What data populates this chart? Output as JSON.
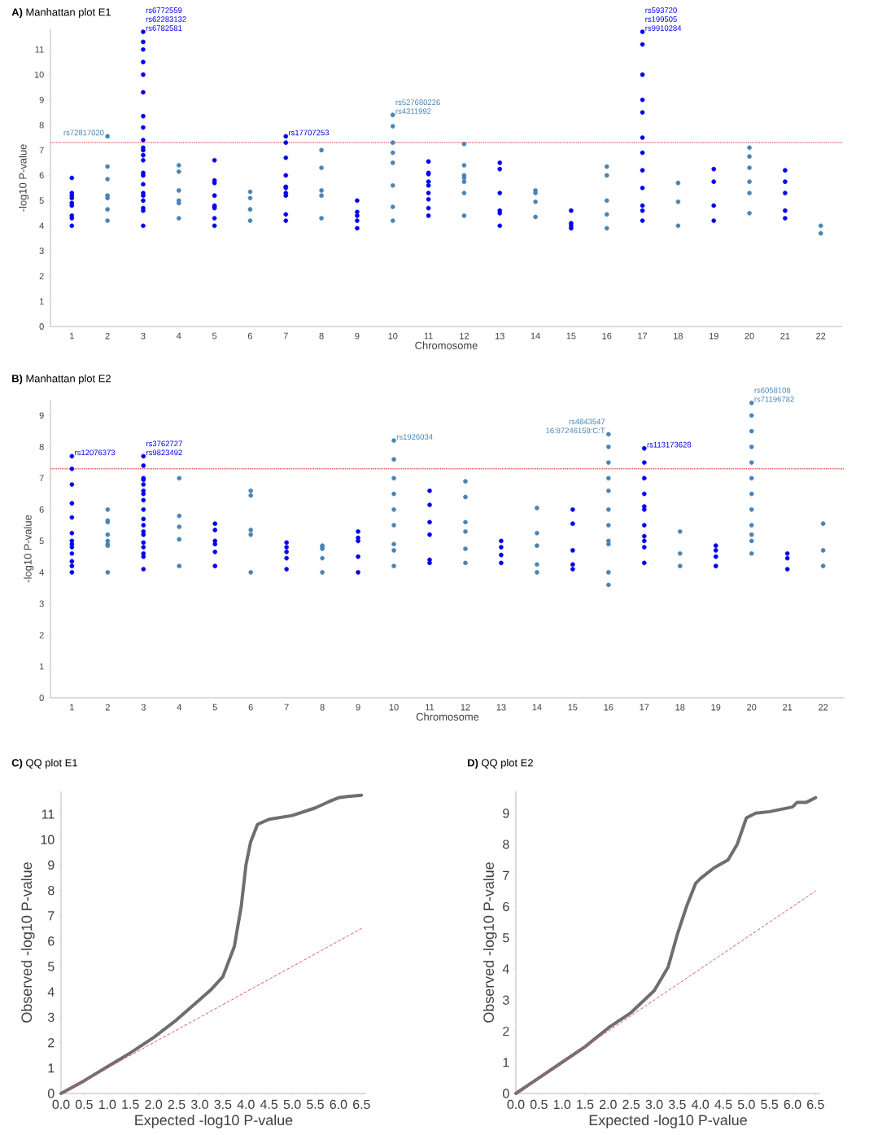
{
  "chart_data": [
    {
      "type": "scatter",
      "title": "**A)** Manhattan plot E1",
      "xlabel": "Chromosome",
      "ylabel": "-log10 P-value",
      "marker": "circle",
      "categories": [
        "1",
        "2",
        "3",
        "4",
        "5",
        "6",
        "7",
        "8",
        "9",
        "10",
        "11",
        "12",
        "13",
        "14",
        "15",
        "16",
        "17",
        "18",
        "19",
        "20",
        "21",
        "22"
      ],
      "ylim": [
        0,
        11.8
      ],
      "yticks": [
        0,
        1,
        2,
        3,
        4,
        5,
        6,
        7,
        8,
        9,
        10,
        11
      ],
      "ref_lines": [
        {
          "axis": "y",
          "value": 7.3,
          "color": "#e05a5a",
          "line_style": "dotted"
        }
      ],
      "series": [
        {
          "color": "#0000ee",
          "x": [
            "1",
            "1",
            "1",
            "1",
            "1",
            "1",
            "1",
            "1",
            "1",
            "3",
            "3",
            "3",
            "3",
            "3",
            "3",
            "3",
            "3",
            "3",
            "3",
            "3",
            "3",
            "3",
            "3",
            "3",
            "3",
            "3",
            "3",
            "3",
            "3",
            "3",
            "3",
            "5",
            "5",
            "5",
            "5",
            "5",
            "5",
            "5",
            "5",
            "5",
            "7",
            "7",
            "7",
            "7",
            "7",
            "7",
            "7",
            "7",
            "7",
            "7",
            "9",
            "9",
            "9",
            "9",
            "9",
            "11",
            "11",
            "11",
            "11",
            "11",
            "11",
            "11",
            "11",
            "11",
            "13",
            "13",
            "13",
            "13",
            "13",
            "13",
            "15",
            "15",
            "15",
            "15",
            "17",
            "17",
            "17",
            "17",
            "17",
            "17",
            "17",
            "17",
            "17",
            "17",
            "17",
            "17",
            "19",
            "19",
            "19",
            "19",
            "21",
            "21",
            "21",
            "21",
            "21"
          ],
          "values": [
            4.0,
            4.3,
            4.4,
            4.8,
            4.9,
            5.1,
            5.2,
            5.3,
            5.9,
            4.0,
            4.6,
            4.7,
            5.0,
            5.2,
            5.3,
            5.65,
            6.0,
            6.1,
            6.6,
            6.8,
            7.0,
            7.1,
            7.4,
            7.9,
            8.35,
            9.3,
            10.0,
            10.5,
            11.0,
            11.3,
            11.7,
            4.0,
            4.3,
            4.7,
            4.75,
            4.8,
            5.2,
            5.7,
            5.8,
            6.6,
            4.2,
            4.45,
            5.2,
            5.3,
            5.5,
            5.55,
            6.0,
            6.7,
            7.3,
            7.55,
            3.9,
            4.2,
            4.4,
            4.55,
            5.0,
            4.4,
            4.7,
            5.05,
            5.3,
            5.6,
            5.75,
            6.05,
            6.1,
            6.55,
            4.0,
            4.5,
            4.6,
            5.3,
            6.25,
            6.5,
            3.9,
            4.0,
            4.1,
            4.6,
            4.2,
            4.6,
            4.8,
            5.5,
            6.2,
            6.9,
            7.5,
            8.5,
            9.0,
            10.0,
            11.2,
            11.7,
            4.2,
            4.8,
            5.75,
            6.25,
            4.3,
            4.6,
            5.3,
            5.75,
            6.2
          ]
        },
        {
          "color": "#4a84b6",
          "x": [
            "2",
            "2",
            "2",
            "2",
            "2",
            "2",
            "2",
            "2",
            "4",
            "4",
            "4",
            "4",
            "4",
            "4",
            "6",
            "6",
            "6",
            "6",
            "6",
            "8",
            "8",
            "8",
            "8",
            "8",
            "10",
            "10",
            "10",
            "10",
            "10",
            "10",
            "10",
            "10",
            "12",
            "12",
            "12",
            "12",
            "12",
            "12",
            "12",
            "14",
            "14",
            "14",
            "14",
            "14",
            "16",
            "16",
            "16",
            "16",
            "16",
            "18",
            "18",
            "18",
            "20",
            "20",
            "20",
            "20",
            "20",
            "20",
            "22",
            "22"
          ],
          "values": [
            4.2,
            4.65,
            null,
            5.1,
            5.2,
            5.85,
            6.35,
            7.55,
            4.3,
            4.9,
            5.0,
            5.4,
            6.15,
            6.4,
            4.2,
            4.65,
            5.1,
            null,
            5.35,
            4.3,
            5.2,
            5.4,
            6.3,
            7.0,
            4.2,
            4.75,
            5.6,
            6.5,
            6.9,
            7.3,
            7.95,
            8.4,
            4.4,
            5.3,
            5.75,
            5.9,
            6.0,
            6.4,
            7.25,
            null,
            4.35,
            4.95,
            5.3,
            5.4,
            3.9,
            4.45,
            5.0,
            6.0,
            6.35,
            4.0,
            4.95,
            5.7,
            4.5,
            5.3,
            5.75,
            6.3,
            6.75,
            7.1,
            3.7,
            4.0
          ]
        }
      ],
      "annotations": [
        {
          "text": "rs72817020",
          "x": "2",
          "y": 7.55
        },
        {
          "text": "rs6772559",
          "x": "3",
          "y": 11.7
        },
        {
          "text": "rs62283132",
          "x": "3",
          "y": 11.7
        },
        {
          "text": "rs6782581",
          "x": "3",
          "y": 11.7
        },
        {
          "text": "rs17707253",
          "x": "7",
          "y": 7.55
        },
        {
          "text": "rs527680226",
          "x": "10",
          "y": 8.4
        },
        {
          "text": "rs4311992",
          "x": "10",
          "y": 8.4
        },
        {
          "text": "rs593720",
          "x": "17",
          "y": 11.7
        },
        {
          "text": "rs199505",
          "x": "17",
          "y": 11.7
        },
        {
          "text": "rs9910284",
          "x": "17",
          "y": 11.7
        }
      ]
    },
    {
      "type": "scatter",
      "title": "**B)** Manhattan plot E2",
      "xlabel": "Chromosome",
      "ylabel": "-log10 P-value",
      "marker": "circle",
      "categories": [
        "1",
        "2",
        "3",
        "4",
        "5",
        "6",
        "7",
        "8",
        "9",
        "10",
        "11",
        "12",
        "13",
        "14",
        "15",
        "16",
        "17",
        "18",
        "19",
        "20",
        "21",
        "22"
      ],
      "ylim": [
        0,
        9.5
      ],
      "yticks": [
        0,
        1,
        2,
        3,
        4,
        5,
        6,
        7,
        8,
        9
      ],
      "ref_lines": [
        {
          "axis": "y",
          "value": 7.3,
          "color": "#e05a5a",
          "line_style": "dotted"
        }
      ],
      "series": [
        {
          "color": "#0000ee",
          "x": [
            "1",
            "1",
            "1",
            "1",
            "1",
            "1",
            "1",
            "1",
            "1",
            "1",
            "1",
            "1",
            "1",
            "3",
            "3",
            "3",
            "3",
            "3",
            "3",
            "3",
            "3",
            "3",
            "3",
            "3",
            "3",
            "3",
            "3",
            "3",
            "3",
            "3",
            "3",
            "5",
            "5",
            "5",
            "5",
            "5",
            "5",
            "7",
            "7",
            "7",
            "7",
            "7",
            "9",
            "9",
            "9",
            "9",
            "9",
            "11",
            "11",
            "11",
            "11",
            "11",
            "11",
            "13",
            "13",
            "13",
            "13",
            "15",
            "15",
            "15",
            "15",
            "15",
            "17",
            "17",
            "17",
            "17",
            "17",
            "17",
            "17",
            "17",
            "17",
            "17",
            "17",
            "19",
            "19",
            "19",
            "19",
            "21",
            "21",
            "21"
          ],
          "values": [
            4.0,
            4.2,
            4.35,
            4.6,
            4.8,
            4.9,
            5.0,
            5.25,
            5.75,
            6.2,
            6.8,
            7.3,
            7.7,
            4.1,
            4.5,
            4.6,
            4.8,
            4.95,
            5.2,
            5.3,
            5.5,
            5.7,
            6.0,
            6.3,
            6.5,
            6.6,
            6.8,
            6.95,
            7.0,
            7.4,
            7.7,
            4.2,
            4.65,
            4.9,
            5.0,
            5.35,
            5.55,
            4.1,
            4.45,
            4.65,
            4.8,
            4.95,
            4.0,
            4.5,
            5.0,
            5.1,
            5.3,
            4.3,
            4.4,
            5.2,
            5.6,
            6.15,
            6.6,
            4.3,
            4.55,
            4.8,
            5.0,
            4.1,
            4.25,
            4.7,
            5.55,
            6.0,
            4.3,
            4.8,
            5.0,
            5.15,
            5.5,
            6.0,
            6.1,
            6.5,
            7.0,
            7.5,
            7.95,
            4.2,
            4.5,
            4.7,
            4.85,
            4.1,
            4.45,
            4.6
          ]
        },
        {
          "color": "#4a84b6",
          "x": [
            "2",
            "2",
            "2",
            "2",
            "2",
            "2",
            "2",
            "2",
            "4",
            "4",
            "4",
            "4",
            "4",
            "6",
            "6",
            "6",
            "6",
            "6",
            "8",
            "8",
            "8",
            "8",
            "8",
            "10",
            "10",
            "10",
            "10",
            "10",
            "10",
            "10",
            "10",
            "10",
            "12",
            "12",
            "12",
            "12",
            "12",
            "12",
            "14",
            "14",
            "14",
            "14",
            "14",
            "16",
            "16",
            "16",
            "16",
            "16",
            "16",
            "16",
            "16",
            "16",
            "16",
            "16",
            "18",
            "18",
            "18",
            "20",
            "20",
            "20",
            "20",
            "20",
            "20",
            "20",
            "20",
            "20",
            "20",
            "20",
            "20",
            "22",
            "22",
            "22"
          ],
          "values": [
            4.0,
            4.85,
            4.9,
            5.0,
            5.2,
            5.6,
            5.65,
            6.0,
            4.2,
            5.05,
            5.45,
            5.8,
            7.0,
            4.0,
            5.2,
            5.35,
            6.45,
            6.6,
            4.0,
            4.45,
            4.75,
            4.8,
            4.85,
            4.2,
            4.7,
            4.9,
            5.5,
            6.0,
            6.5,
            7.0,
            7.6,
            8.2,
            4.3,
            4.75,
            5.3,
            5.6,
            6.4,
            6.9,
            4.0,
            4.25,
            4.85,
            5.25,
            6.05,
            3.6,
            4.0,
            4.9,
            5.0,
            5.5,
            6.0,
            6.6,
            7.0,
            7.5,
            8.0,
            8.4,
            4.2,
            4.6,
            5.3,
            4.6,
            5.0,
            5.2,
            5.5,
            6.0,
            6.5,
            7.0,
            7.5,
            8.0,
            8.5,
            9.0,
            9.4,
            4.2,
            4.7,
            5.55
          ]
        }
      ],
      "annotations": [
        {
          "text": "rs12076373",
          "x": "1",
          "y": 7.7
        },
        {
          "text": "rs3762727",
          "x": "3",
          "y": 7.7
        },
        {
          "text": "rs9823492",
          "x": "3",
          "y": 7.7
        },
        {
          "text": "rs1926034",
          "x": "10",
          "y": 8.2
        },
        {
          "text": "rs4843547",
          "x": "16",
          "y": 8.4
        },
        {
          "text": "16:87246159:C:T",
          "x": "16",
          "y": 8.4
        },
        {
          "text": "rs113173628",
          "x": "17",
          "y": 7.95
        },
        {
          "text": "rs6058108",
          "x": "20",
          "y": 9.4
        },
        {
          "text": "rs71196782",
          "x": "20",
          "y": 9.4
        }
      ]
    },
    {
      "type": "line",
      "title": "**C)** QQ plot E1",
      "xlabel": "Expected -log10 P-value",
      "ylabel": "Observed -log10 P-value",
      "xlim": [
        0,
        6.6
      ],
      "ylim": [
        0,
        11.9
      ],
      "yticks": [
        0,
        1,
        2,
        3,
        4,
        5,
        6,
        7,
        8,
        9,
        10,
        11
      ],
      "xticks": [
        {
          "value": 0,
          "label": "0.0"
        },
        {
          "value": 0.5,
          "label": "0.5"
        },
        {
          "value": 1,
          "label": "1.0"
        },
        {
          "value": 1.5,
          "label": "1.5"
        },
        {
          "value": 2,
          "label": "2.0"
        },
        {
          "value": 2.5,
          "label": "2.5"
        },
        {
          "value": 3,
          "label": "3.0"
        },
        {
          "value": 3.5,
          "label": "3.5"
        },
        {
          "value": 4,
          "label": "4.0"
        },
        {
          "value": 4.5,
          "label": "4.5"
        },
        {
          "value": 5,
          "label": "5.0"
        },
        {
          "value": 5.5,
          "label": "5.5"
        },
        {
          "value": 6,
          "label": "6.0"
        },
        {
          "value": 6.5,
          "label": "6.5"
        }
      ],
      "series": [
        {
          "color": "#6e6e6e",
          "x": [
            0,
            0.5,
            1.0,
            1.5,
            2.0,
            2.5,
            3.0,
            3.25,
            3.5,
            3.75,
            3.9,
            4.0,
            4.1,
            4.25,
            4.5,
            5.0,
            5.5,
            5.8,
            6.0,
            6.2,
            6.5
          ],
          "values": [
            0,
            0.5,
            1.05,
            1.6,
            2.2,
            2.9,
            3.7,
            4.1,
            4.6,
            5.8,
            7.4,
            9.0,
            9.9,
            10.6,
            10.8,
            10.95,
            11.25,
            11.5,
            11.65,
            11.7,
            11.75
          ]
        },
        {
          "color": "#e05a5a",
          "line_style": "dashed",
          "x": [
            0,
            6.5
          ],
          "values": [
            0,
            6.5
          ]
        }
      ]
    },
    {
      "type": "line",
      "title": "**D)** QQ plot E2",
      "xlabel": "Expected -log10 P-value",
      "ylabel": "Observed -log10 P-value",
      "xlim": [
        0,
        6.6
      ],
      "ylim": [
        0,
        9.7
      ],
      "yticks": [
        0,
        1,
        2,
        3,
        4,
        5,
        6,
        7,
        8,
        9
      ],
      "xticks": [
        {
          "value": 0,
          "label": "0.0"
        },
        {
          "value": 0.5,
          "label": "0.5"
        },
        {
          "value": 1,
          "label": "1.0"
        },
        {
          "value": 1.5,
          "label": "1.5"
        },
        {
          "value": 2,
          "label": "2.0"
        },
        {
          "value": 2.5,
          "label": "2.5"
        },
        {
          "value": 3,
          "label": "3.0"
        },
        {
          "value": 3.5,
          "label": "3.5"
        },
        {
          "value": 4,
          "label": "4.0"
        },
        {
          "value": 4.5,
          "label": "4.5"
        },
        {
          "value": 5,
          "label": "5.0"
        },
        {
          "value": 5.5,
          "label": "5.5"
        },
        {
          "value": 6,
          "label": "6.0"
        },
        {
          "value": 6.5,
          "label": "6.5"
        }
      ],
      "series": [
        {
          "color": "#6e6e6e",
          "x": [
            0,
            0.5,
            1.0,
            1.5,
            2.0,
            2.5,
            3.0,
            3.3,
            3.5,
            3.7,
            3.9,
            4.0,
            4.3,
            4.6,
            4.8,
            5.0,
            5.2,
            5.5,
            6.0,
            6.1,
            6.3,
            6.5
          ],
          "values": [
            0,
            0.5,
            1.0,
            1.5,
            2.1,
            2.6,
            3.3,
            4.05,
            5.1,
            6.0,
            6.75,
            6.9,
            7.25,
            7.5,
            8.0,
            8.85,
            9.0,
            9.05,
            9.2,
            9.35,
            9.35,
            9.5
          ]
        },
        {
          "color": "#e05a5a",
          "line_style": "dashed",
          "x": [
            0,
            6.5
          ],
          "values": [
            0,
            6.5
          ]
        }
      ]
    }
  ]
}
